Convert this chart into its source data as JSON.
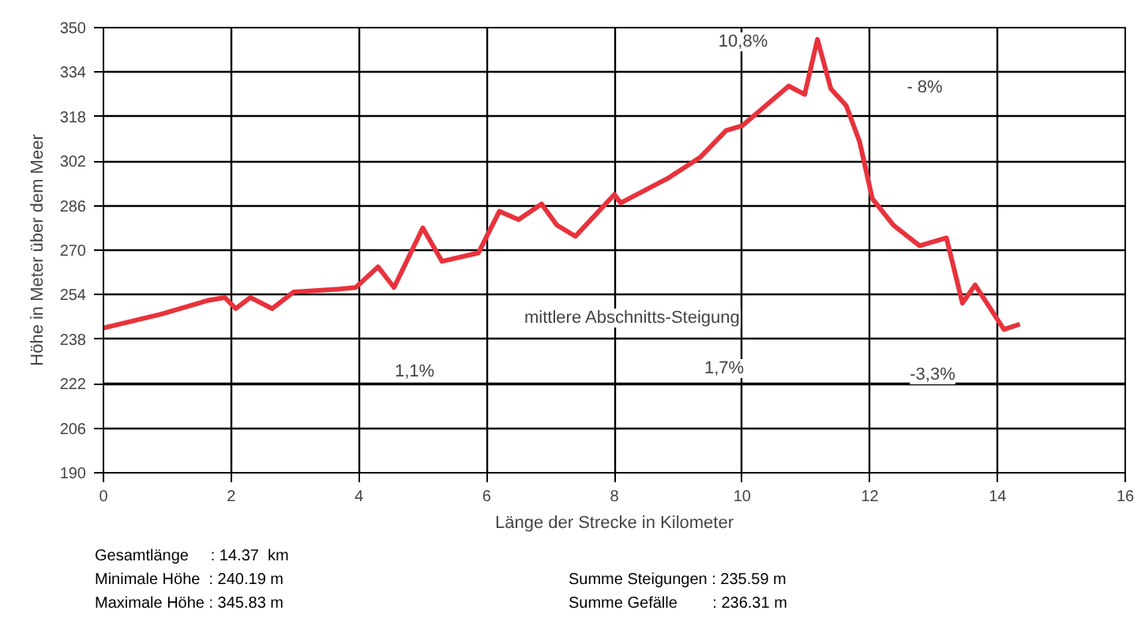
{
  "chart_data": {
    "type": "line",
    "xlabel": "Länge der Strecke in Kilometer",
    "ylabel": "Höhe in Meter über dem Meer",
    "x": [
      0,
      0.9,
      1.65,
      1.9,
      2.07,
      2.3,
      2.64,
      2.98,
      3.7,
      3.95,
      4.3,
      4.55,
      5.0,
      5.3,
      5.87,
      6.2,
      6.5,
      6.86,
      7.1,
      7.39,
      8.0,
      8.1,
      8.85,
      9.35,
      9.75,
      10.0,
      10.73,
      10.98,
      11.18,
      11.39,
      11.63,
      11.84,
      12.04,
      12.37,
      12.78,
      13.2,
      13.45,
      13.65,
      14.1,
      14.35
    ],
    "series": [
      {
        "color": "#e8323c",
        "values": [
          242,
          247,
          252,
          253,
          249,
          253,
          249,
          255,
          256,
          256.6,
          264,
          256.6,
          278,
          266,
          269,
          284,
          281,
          286.6,
          279,
          275,
          290,
          287,
          296,
          303.5,
          313,
          314.7,
          329,
          326,
          345.8,
          328,
          322,
          309,
          288.5,
          279,
          271.6,
          274.4,
          251,
          257.5,
          241.5,
          243.4
        ]
      }
    ],
    "xlim": [
      0,
      16
    ],
    "xticks": [
      0,
      2,
      4,
      6,
      8,
      10,
      12,
      14,
      16
    ],
    "ylim": [
      190,
      350
    ],
    "yticks": [
      190,
      206,
      222,
      238,
      254,
      270,
      286,
      302,
      318,
      334,
      350
    ],
    "grid": true,
    "marker": "none",
    "line_style": "solid",
    "ref_lines": [
      {
        "axis": "y",
        "value": 222,
        "label": null,
        "color": "#000000"
      }
    ],
    "annotations": [
      "10,8%",
      "- 8%",
      "mittlere Abschnitts-Steigung",
      "1,1%",
      "1,7%",
      "-3,3%",
      "Gesamtlänge     : 14.37  km",
      "Minimale Höhe  : 240.19 m",
      "Maximale Höhe : 345.83 m",
      "Summe Steigungen : 235.59 m",
      "Summe Gefälle        : 236.31 m"
    ]
  }
}
